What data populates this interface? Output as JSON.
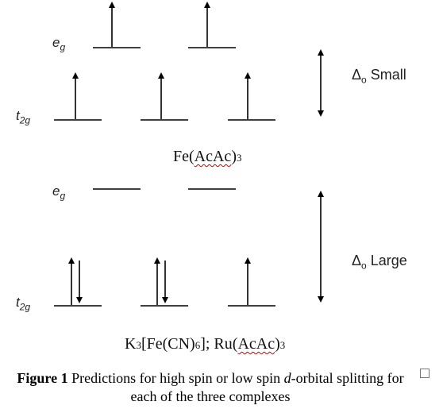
{
  "top_panel": {
    "eg_label": "e",
    "eg_sub": "g",
    "t2g_label": "t",
    "t2g_sub": "2g",
    "delta_symbol": "Δ",
    "delta_sub": "o",
    "delta_word": "Small",
    "compound_prefix": "Fe(",
    "compound_ligand": "AcAc",
    "compound_suffix": ")",
    "compound_sub": "3",
    "electrons": {
      "eg": [
        "up",
        "up"
      ],
      "t2g": [
        "up",
        "up",
        "up"
      ]
    }
  },
  "bottom_panel": {
    "eg_label": "e",
    "eg_sub": "g",
    "t2g_label": "t",
    "t2g_sub": "2g",
    "delta_symbol": "Δ",
    "delta_sub": "o",
    "delta_word": "Large",
    "compound_k": "K",
    "compound_k_sub": "3",
    "compound_fe": "[Fe(CN)",
    "compound_cn_sub": "6",
    "compound_mid": "]; Ru(",
    "compound_ligand": "AcAc",
    "compound_suffix": ")",
    "compound_sub": "3",
    "electrons": {
      "eg": [
        "none",
        "none"
      ],
      "t2g": [
        "pair",
        "pair",
        "up"
      ]
    }
  },
  "caption": {
    "bold": "Figure 1",
    "text": " Predictions for high spin or low spin ",
    "italic": "d",
    "text2": "-orbital splitting for each of the three complexes"
  }
}
